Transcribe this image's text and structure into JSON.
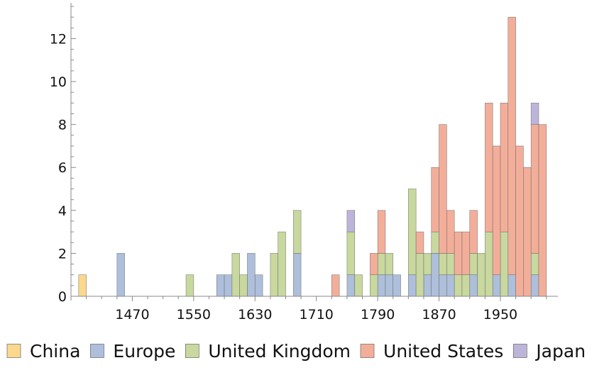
{
  "chart_data": {
    "type": "bar",
    "stacked": true,
    "bin_width": 10,
    "x_ticks": [
      1470,
      1550,
      1630,
      1710,
      1790,
      1870,
      1950
    ],
    "y_ticks": [
      0,
      2,
      4,
      6,
      8,
      10,
      12
    ],
    "xlim": [
      1390,
      2025
    ],
    "ylim": [
      0,
      13.6
    ],
    "legend_position": "bottom",
    "series": [
      {
        "name": "China",
        "color": "#fcd78e",
        "bins": [
          [
            1400,
            1
          ]
        ]
      },
      {
        "name": "Europe",
        "color": "#aebfdb",
        "bins": [
          [
            1450,
            2
          ],
          [
            1580,
            1
          ],
          [
            1590,
            1
          ],
          [
            1620,
            2
          ],
          [
            1630,
            1
          ],
          [
            1680,
            2
          ],
          [
            1750,
            1
          ],
          [
            1790,
            1
          ],
          [
            1800,
            1
          ],
          [
            1810,
            1
          ],
          [
            1830,
            1
          ],
          [
            1850,
            1
          ],
          [
            1860,
            2
          ],
          [
            1870,
            1
          ],
          [
            1880,
            1
          ],
          [
            1910,
            1
          ],
          [
            1940,
            1
          ],
          [
            1960,
            1
          ],
          [
            1990,
            1
          ]
        ]
      },
      {
        "name": "United Kingdom",
        "color": "#c8d89e",
        "bins": [
          [
            1540,
            1
          ],
          [
            1600,
            2
          ],
          [
            1610,
            1
          ],
          [
            1650,
            2
          ],
          [
            1660,
            3
          ],
          [
            1680,
            2
          ],
          [
            1750,
            2
          ],
          [
            1760,
            1
          ],
          [
            1780,
            1
          ],
          [
            1790,
            1
          ],
          [
            1800,
            1
          ],
          [
            1830,
            4
          ],
          [
            1840,
            2
          ],
          [
            1850,
            1
          ],
          [
            1860,
            1
          ],
          [
            1870,
            1
          ],
          [
            1880,
            1
          ],
          [
            1890,
            1
          ],
          [
            1900,
            1
          ],
          [
            1910,
            1
          ],
          [
            1920,
            2
          ],
          [
            1930,
            3
          ],
          [
            1950,
            3
          ],
          [
            1990,
            1
          ]
        ]
      },
      {
        "name": "United States",
        "color": "#f3ae9a",
        "bins": [
          [
            1730,
            1
          ],
          [
            1780,
            1
          ],
          [
            1790,
            2
          ],
          [
            1840,
            1
          ],
          [
            1860,
            3
          ],
          [
            1870,
            6
          ],
          [
            1880,
            2
          ],
          [
            1890,
            2
          ],
          [
            1900,
            2
          ],
          [
            1910,
            2
          ],
          [
            1930,
            6
          ],
          [
            1940,
            6
          ],
          [
            1950,
            6
          ],
          [
            1960,
            12
          ],
          [
            1970,
            7
          ],
          [
            1980,
            6
          ],
          [
            1990,
            6
          ],
          [
            2000,
            8
          ]
        ]
      },
      {
        "name": "Japan",
        "color": "#bdb5d9",
        "bins": [
          [
            1750,
            1
          ],
          [
            1990,
            1
          ]
        ]
      }
    ]
  }
}
